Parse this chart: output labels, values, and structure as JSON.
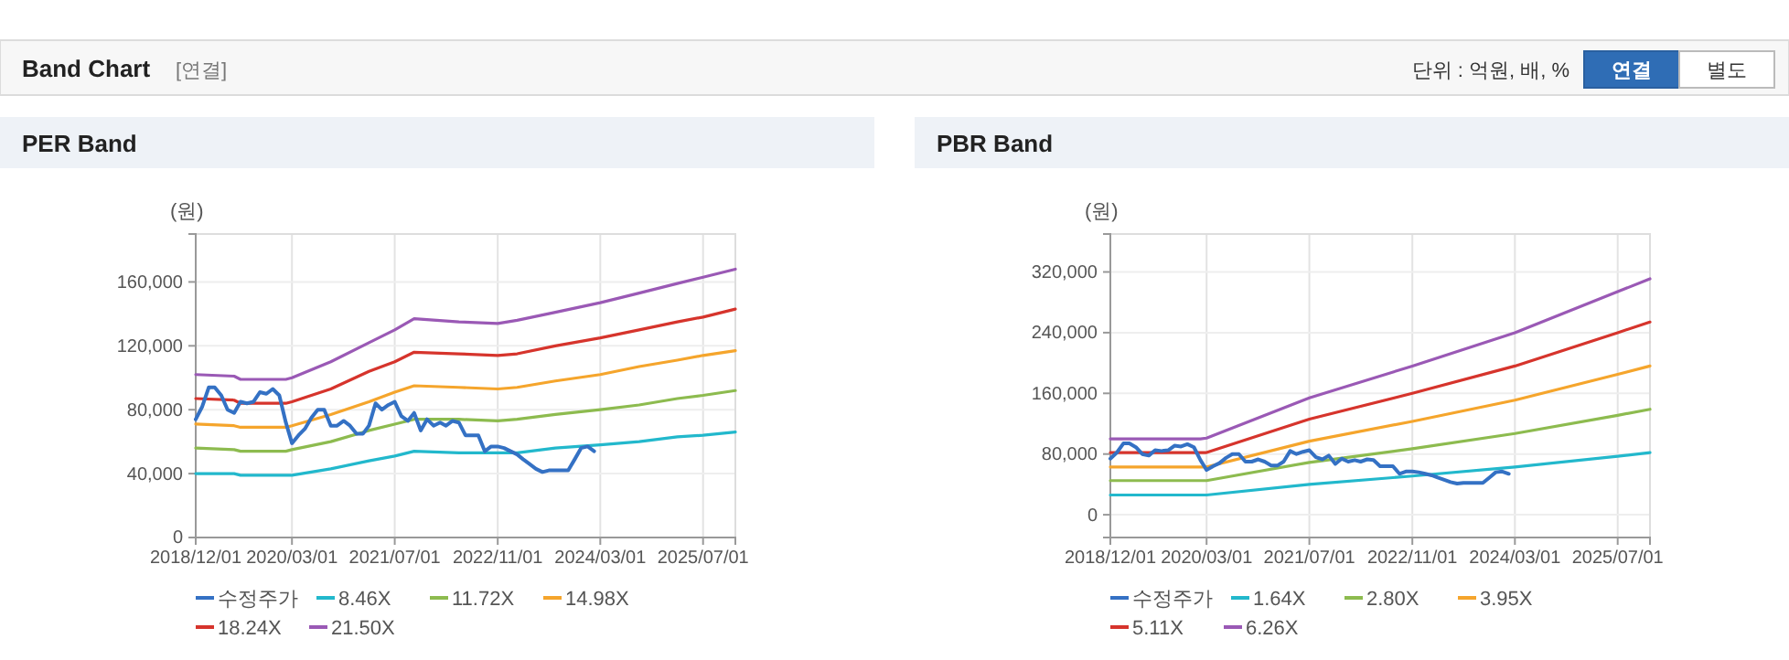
{
  "chart_data": [
    {
      "type": "other",
      "title": "Band Chart",
      "annotations": [
        "[연결]",
        "단위 : 억원, 배, %",
        "연결",
        "별도"
      ]
    },
    {
      "type": "line",
      "title": "PER Band",
      "ylabel": "(원)",
      "xlim": [
        "2018-12-01",
        "2025-12-01"
      ],
      "ylim": [
        0,
        190000
      ],
      "xticks": [
        {
          "value": "2018-12-01",
          "label": "2018/12/01"
        },
        {
          "value": "2020-03-01",
          "label": "2020/03/01"
        },
        {
          "value": "2021-07-01",
          "label": "2021/07/01"
        },
        {
          "value": "2022-11-01",
          "label": "2022/11/01"
        },
        {
          "value": "2024-03-01",
          "label": "2024/03/01"
        },
        {
          "value": "2025-07-01",
          "label": "2025/07/01"
        }
      ],
      "yticks": [
        {
          "value": 0,
          "label": "0"
        },
        {
          "value": 40000,
          "label": "40,000"
        },
        {
          "value": 80000,
          "label": "80,000"
        },
        {
          "value": 120000,
          "label": "120,000"
        },
        {
          "value": 160000,
          "label": "160,000"
        }
      ],
      "grid": true,
      "legend": "bottom",
      "marker": "none",
      "line_style": "solid",
      "series": [
        {
          "name": "수정주가",
          "color": "#3471c4",
          "x": [
            "2018-12",
            "2019-01",
            "2019-02",
            "2019-03",
            "2019-04",
            "2019-05",
            "2019-06",
            "2019-07",
            "2019-08",
            "2019-09",
            "2019-10",
            "2019-11",
            "2019-12",
            "2020-01",
            "2020-02",
            "2020-03",
            "2020-04",
            "2020-05",
            "2020-06",
            "2020-07",
            "2020-08",
            "2020-09",
            "2020-10",
            "2020-11",
            "2020-12",
            "2021-01",
            "2021-02",
            "2021-03",
            "2021-04",
            "2021-05",
            "2021-06",
            "2021-07",
            "2021-08",
            "2021-09",
            "2021-10",
            "2021-11",
            "2021-12",
            "2022-01",
            "2022-02",
            "2022-03",
            "2022-04",
            "2022-05",
            "2022-06",
            "2022-07",
            "2022-08",
            "2022-09",
            "2022-10",
            "2022-11",
            "2022-12",
            "2023-01",
            "2023-02",
            "2023-03",
            "2023-04",
            "2023-05",
            "2023-06",
            "2023-07",
            "2023-08",
            "2023-09",
            "2023-10",
            "2023-11",
            "2023-12",
            "2024-01",
            "2024-02"
          ],
          "values": [
            74000,
            82000,
            94000,
            94000,
            89000,
            80000,
            78000,
            85000,
            84000,
            85000,
            91000,
            90000,
            93000,
            89000,
            72000,
            59000,
            64000,
            68000,
            75000,
            80000,
            80000,
            70000,
            70000,
            73000,
            70000,
            65000,
            65000,
            70000,
            84000,
            80000,
            83000,
            85000,
            76000,
            73000,
            78000,
            67000,
            74000,
            70000,
            72000,
            70000,
            73000,
            72000,
            64000,
            64000,
            64000,
            54000,
            57000,
            57000,
            56000,
            54000,
            52000,
            49000,
            46000,
            43000,
            41000,
            42000,
            42000,
            42000,
            42000,
            49000,
            56000,
            57000,
            54000
          ]
        },
        {
          "name": "8.46X",
          "color": "#22b8cc",
          "x": [
            "2018-12",
            "2019-06",
            "2019-07",
            "2020-02",
            "2020-03",
            "2020-09",
            "2021-03",
            "2021-07",
            "2021-10",
            "2022-05",
            "2022-11",
            "2023-02",
            "2023-08",
            "2024-03",
            "2024-09",
            "2025-03",
            "2025-07",
            "2025-12"
          ],
          "values": [
            40000,
            40000,
            39000,
            39000,
            39000,
            43000,
            48000,
            51000,
            54000,
            53000,
            53000,
            53000,
            56000,
            58000,
            60000,
            63000,
            64000,
            66000
          ]
        },
        {
          "name": "11.72X",
          "color": "#8dbb4f",
          "x": [
            "2018-12",
            "2019-06",
            "2019-07",
            "2020-02",
            "2020-03",
            "2020-09",
            "2021-03",
            "2021-07",
            "2021-10",
            "2022-05",
            "2022-11",
            "2023-02",
            "2023-08",
            "2024-03",
            "2024-09",
            "2025-03",
            "2025-07",
            "2025-12"
          ],
          "values": [
            56000,
            55000,
            54000,
            54000,
            55000,
            60000,
            67000,
            71000,
            74000,
            74000,
            73000,
            74000,
            77000,
            80000,
            83000,
            87000,
            89000,
            92000
          ]
        },
        {
          "name": "14.98X",
          "color": "#f5a52c",
          "x": [
            "2018-12",
            "2019-06",
            "2019-07",
            "2020-02",
            "2020-03",
            "2020-09",
            "2021-03",
            "2021-07",
            "2021-10",
            "2022-05",
            "2022-11",
            "2023-02",
            "2023-08",
            "2024-03",
            "2024-09",
            "2025-03",
            "2025-07",
            "2025-12"
          ],
          "values": [
            71000,
            70000,
            69000,
            69000,
            70000,
            77000,
            85000,
            91000,
            95000,
            94000,
            93000,
            94000,
            98000,
            102000,
            107000,
            111000,
            114000,
            117000
          ]
        },
        {
          "name": "18.24X",
          "color": "#d6342c",
          "x": [
            "2018-12",
            "2019-06",
            "2019-07",
            "2020-02",
            "2020-03",
            "2020-09",
            "2021-03",
            "2021-07",
            "2021-10",
            "2022-05",
            "2022-11",
            "2023-02",
            "2023-08",
            "2024-03",
            "2024-09",
            "2025-03",
            "2025-07",
            "2025-12"
          ],
          "values": [
            87000,
            86000,
            84000,
            84000,
            85000,
            93000,
            104000,
            110000,
            116000,
            115000,
            114000,
            115000,
            120000,
            125000,
            130000,
            135000,
            138000,
            143000
          ]
        },
        {
          "name": "21.50X",
          "color": "#9a59b5",
          "x": [
            "2018-12",
            "2019-06",
            "2019-07",
            "2020-02",
            "2020-03",
            "2020-09",
            "2021-03",
            "2021-07",
            "2021-10",
            "2022-05",
            "2022-11",
            "2023-02",
            "2023-08",
            "2024-03",
            "2024-09",
            "2025-03",
            "2025-07",
            "2025-12"
          ],
          "values": [
            102000,
            101000,
            99000,
            99000,
            100000,
            110000,
            122000,
            130000,
            137000,
            135000,
            134000,
            136000,
            141000,
            147000,
            153000,
            159000,
            163000,
            168000
          ]
        }
      ]
    },
    {
      "type": "line",
      "title": "PBR Band",
      "ylabel": "(원)",
      "xlim": [
        "2018-12-01",
        "2025-12-01"
      ],
      "ylim": [
        -30000,
        370000
      ],
      "xticks": [
        {
          "value": "2018-12-01",
          "label": "2018/12/01"
        },
        {
          "value": "2020-03-01",
          "label": "2020/03/01"
        },
        {
          "value": "2021-07-01",
          "label": "2021/07/01"
        },
        {
          "value": "2022-11-01",
          "label": "2022/11/01"
        },
        {
          "value": "2024-03-01",
          "label": "2024/03/01"
        },
        {
          "value": "2025-07-01",
          "label": "2025/07/01"
        }
      ],
      "yticks": [
        {
          "value": 0,
          "label": "0"
        },
        {
          "value": 80000,
          "label": "80,000"
        },
        {
          "value": 160000,
          "label": "160,000"
        },
        {
          "value": 240000,
          "label": "240,000"
        },
        {
          "value": 320000,
          "label": "320,000"
        }
      ],
      "grid": true,
      "legend": "bottom",
      "marker": "none",
      "line_style": "solid",
      "series": [
        {
          "name": "수정주가",
          "color": "#3471c4",
          "x": [
            "2018-12",
            "2019-01",
            "2019-02",
            "2019-03",
            "2019-04",
            "2019-05",
            "2019-06",
            "2019-07",
            "2019-08",
            "2019-09",
            "2019-10",
            "2019-11",
            "2019-12",
            "2020-01",
            "2020-02",
            "2020-03",
            "2020-04",
            "2020-05",
            "2020-06",
            "2020-07",
            "2020-08",
            "2020-09",
            "2020-10",
            "2020-11",
            "2020-12",
            "2021-01",
            "2021-02",
            "2021-03",
            "2021-04",
            "2021-05",
            "2021-06",
            "2021-07",
            "2021-08",
            "2021-09",
            "2021-10",
            "2021-11",
            "2021-12",
            "2022-01",
            "2022-02",
            "2022-03",
            "2022-04",
            "2022-05",
            "2022-06",
            "2022-07",
            "2022-08",
            "2022-09",
            "2022-10",
            "2022-11",
            "2022-12",
            "2023-01",
            "2023-02",
            "2023-03",
            "2023-04",
            "2023-05",
            "2023-06",
            "2023-07",
            "2023-08",
            "2023-09",
            "2023-10",
            "2023-11",
            "2023-12",
            "2024-01",
            "2024-02"
          ],
          "values": [
            74000,
            82000,
            94000,
            94000,
            89000,
            80000,
            78000,
            85000,
            84000,
            85000,
            91000,
            90000,
            93000,
            89000,
            72000,
            59000,
            64000,
            68000,
            75000,
            80000,
            80000,
            70000,
            70000,
            73000,
            70000,
            65000,
            65000,
            70000,
            84000,
            80000,
            83000,
            85000,
            76000,
            73000,
            78000,
            67000,
            74000,
            70000,
            72000,
            70000,
            73000,
            72000,
            64000,
            64000,
            64000,
            54000,
            57000,
            57000,
            56000,
            54000,
            52000,
            49000,
            46000,
            43000,
            41000,
            42000,
            42000,
            42000,
            42000,
            49000,
            56000,
            57000,
            54000
          ]
        },
        {
          "name": "1.64X",
          "color": "#22b8cc",
          "x": [
            "2018-12",
            "2020-02",
            "2020-03",
            "2021-07",
            "2022-11",
            "2024-03",
            "2025-07",
            "2025-12"
          ],
          "values": [
            26000,
            26000,
            26000,
            40000,
            51000,
            63000,
            77000,
            82000
          ]
        },
        {
          "name": "2.80X",
          "color": "#8dbb4f",
          "x": [
            "2018-12",
            "2020-02",
            "2020-03",
            "2021-07",
            "2022-11",
            "2024-03",
            "2025-07",
            "2025-12"
          ],
          "values": [
            45000,
            45000,
            45000,
            69000,
            87000,
            107000,
            131000,
            139000
          ]
        },
        {
          "name": "3.95X",
          "color": "#f5a52c",
          "x": [
            "2018-12",
            "2020-02",
            "2020-03",
            "2021-07",
            "2022-11",
            "2024-03",
            "2025-07",
            "2025-12"
          ],
          "values": [
            63000,
            63000,
            63000,
            97000,
            123000,
            151000,
            185000,
            196000
          ]
        },
        {
          "name": "5.11X",
          "color": "#d6342c",
          "x": [
            "2018-12",
            "2020-02",
            "2020-03",
            "2021-07",
            "2022-11",
            "2024-03",
            "2025-07",
            "2025-12"
          ],
          "values": [
            82000,
            82000,
            82000,
            126000,
            160000,
            196000,
            240000,
            254000
          ]
        },
        {
          "name": "6.26X",
          "color": "#9a59b5",
          "x": [
            "2018-12",
            "2020-02",
            "2020-03",
            "2021-07",
            "2022-11",
            "2024-03",
            "2025-07",
            "2025-12"
          ],
          "values": [
            100000,
            100000,
            101000,
            154000,
            196000,
            240000,
            294000,
            311000
          ]
        }
      ]
    }
  ]
}
